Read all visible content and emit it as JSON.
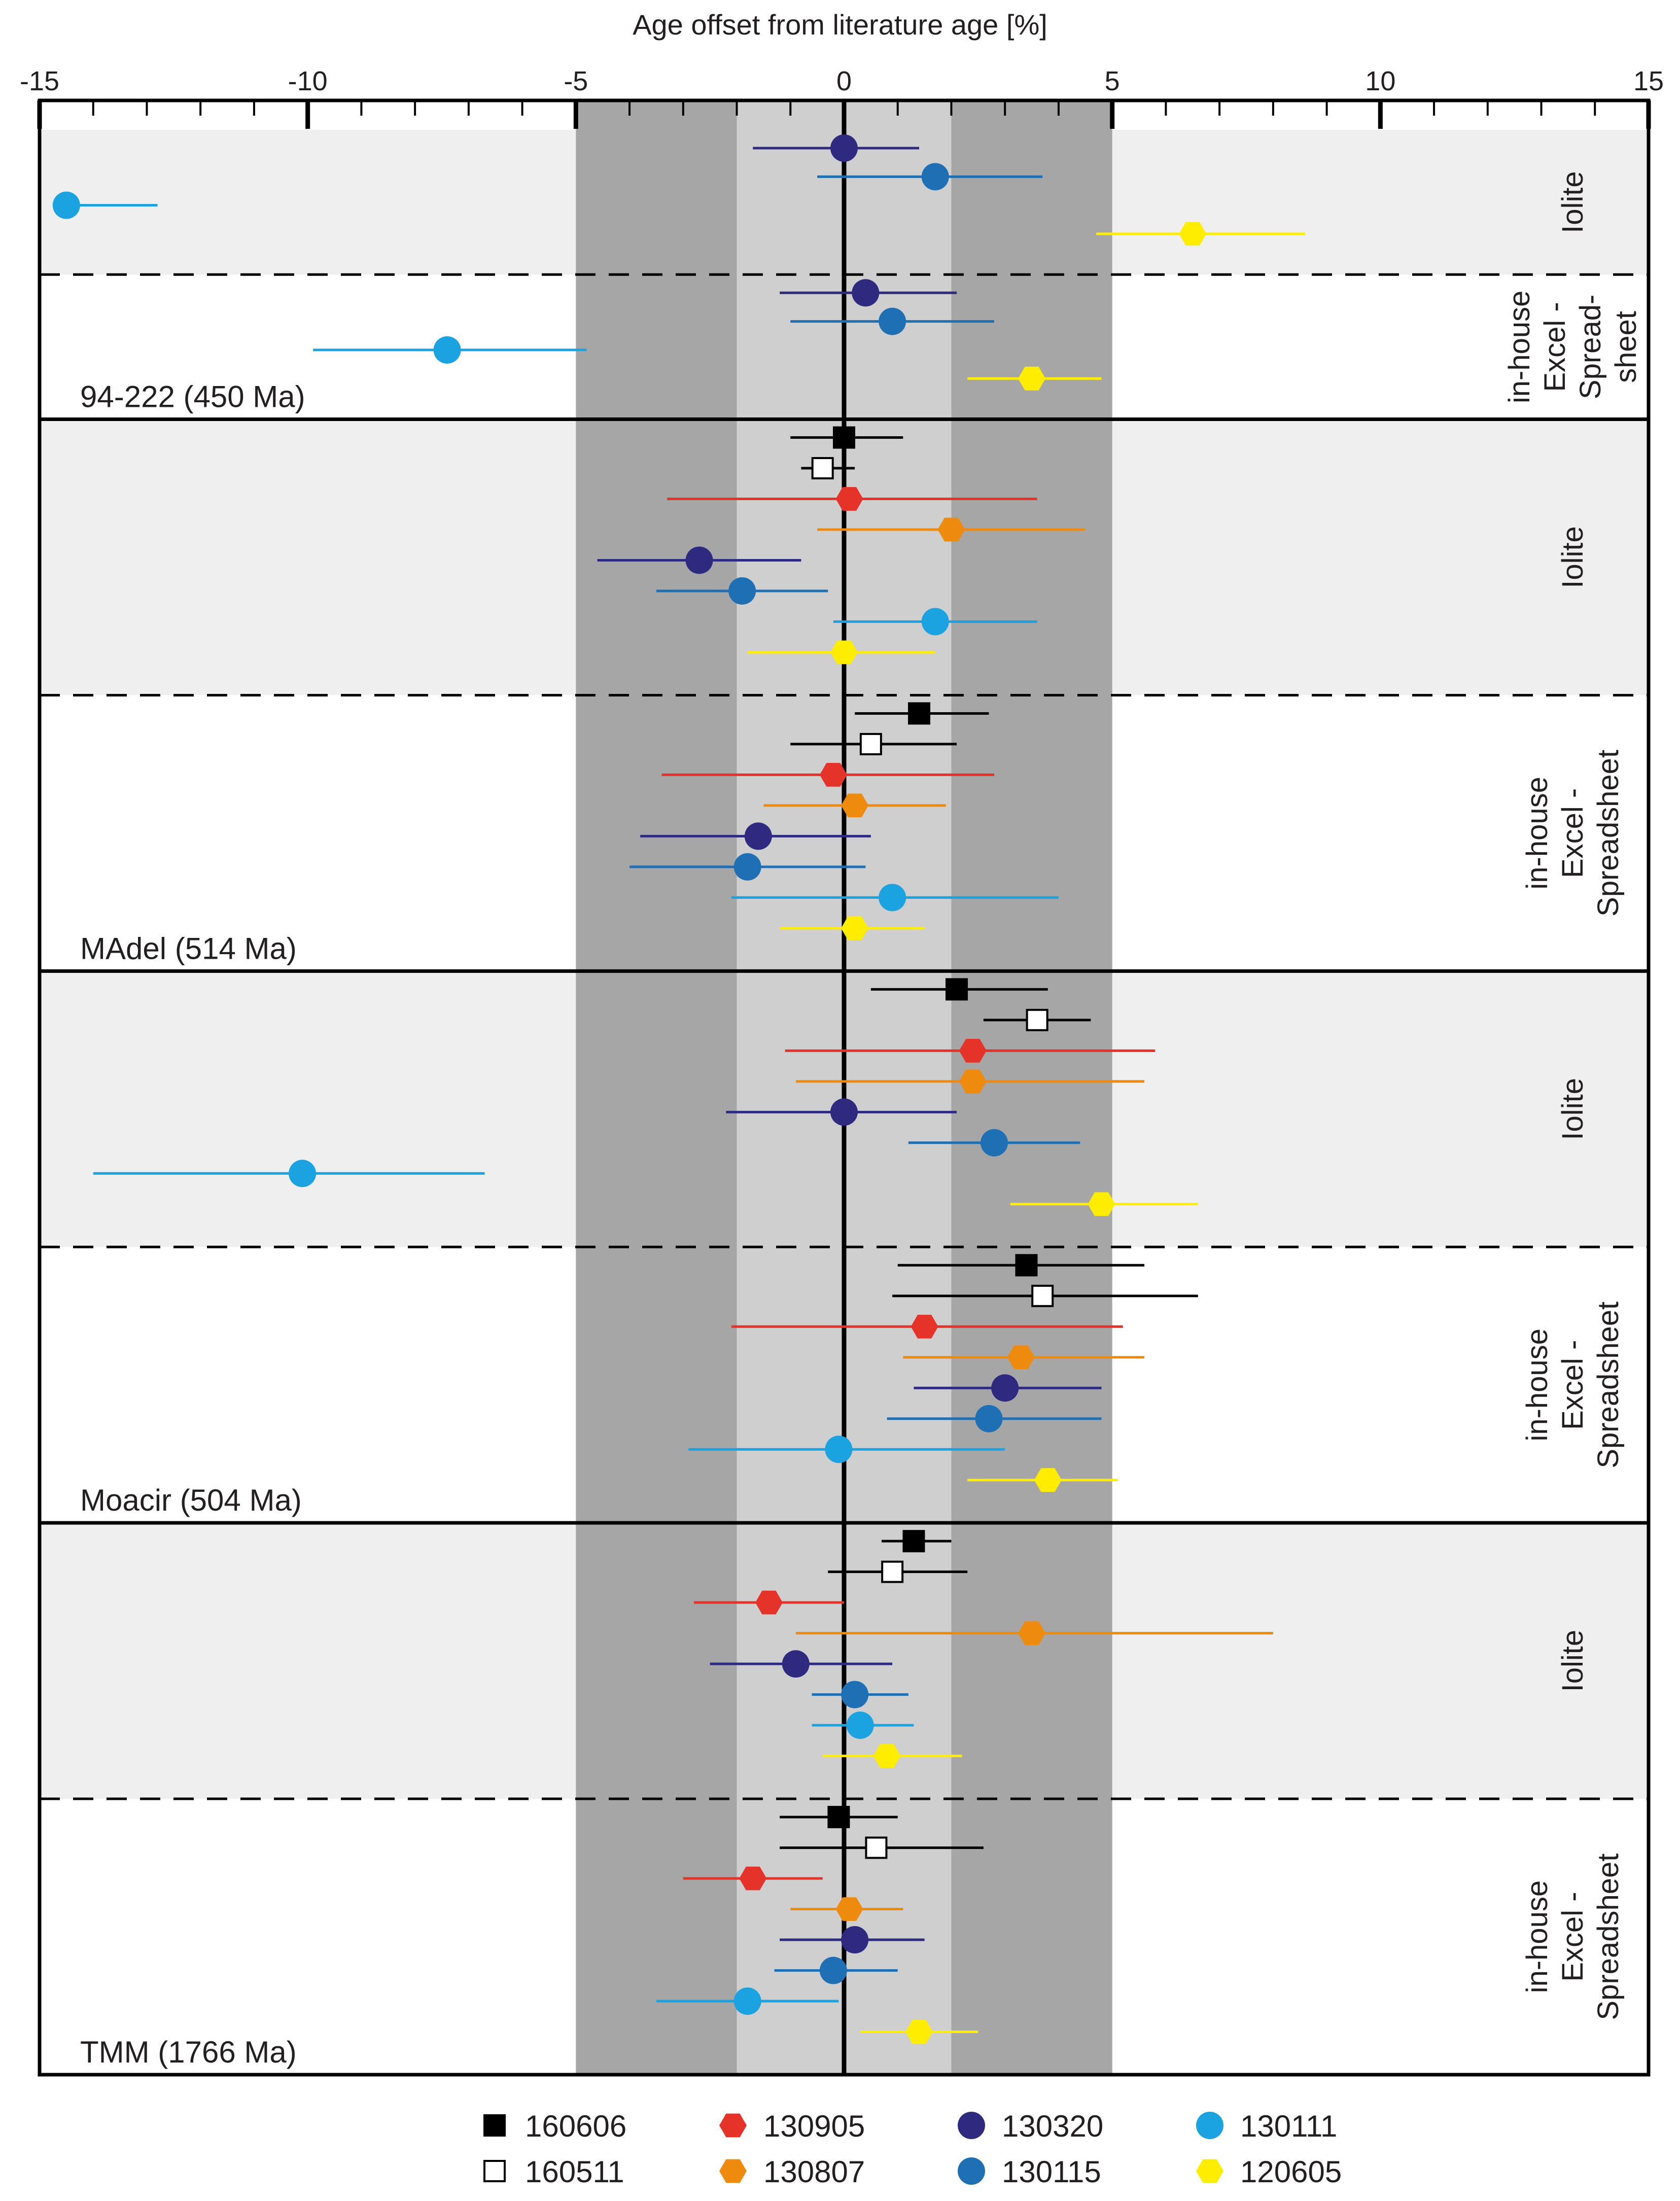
{
  "chart_data": {
    "type": "scatter",
    "subtype": "horizontal error-bar dot plot",
    "title": "Age offset from literature age [%]",
    "xlabel": "Age offset from literature age [%]",
    "xlim": [
      -15,
      15
    ],
    "xticks": [
      "-15",
      "-10",
      "-5",
      "0",
      "5",
      "10",
      "15"
    ],
    "xtick_values": [
      -15,
      -10,
      -5,
      0,
      5,
      10,
      15
    ],
    "bands": [
      {
        "name": "±5% band",
        "from": -5,
        "to": 5,
        "color": "#a6a6a6"
      },
      {
        "name": "±2% band",
        "from": -2,
        "to": 2,
        "color": "#cfcfcf"
      }
    ],
    "reference_line": {
      "x": 0
    },
    "series": [
      {
        "name": "160606",
        "color": "#000000",
        "marker": "square"
      },
      {
        "name": "160511",
        "color": "#000000",
        "marker": "open-square"
      },
      {
        "name": "130905",
        "color": "#e6332a",
        "marker": "hexagon"
      },
      {
        "name": "130807",
        "color": "#ee8a0e",
        "marker": "hexagon"
      },
      {
        "name": "130320",
        "color": "#2e2a80",
        "marker": "circle"
      },
      {
        "name": "130115",
        "color": "#1f6fb5",
        "marker": "circle"
      },
      {
        "name": "130111",
        "color": "#1aa3e0",
        "marker": "circle"
      },
      {
        "name": "120605",
        "color": "#ffed00",
        "marker": "hexagon"
      }
    ],
    "samples": [
      {
        "name": "94-222 (450 Ma)",
        "groups": [
          {
            "method": "Iolite",
            "label_lines": [
              "Iolite"
            ],
            "shaded": true,
            "points": [
              {
                "series": "130320",
                "value": 0.0,
                "low": -1.7,
                "high": 1.4
              },
              {
                "series": "130115",
                "value": 1.7,
                "low": -0.5,
                "high": 3.7
              },
              {
                "series": "130111",
                "value": -14.5,
                "low": -14.5,
                "high": -12.8
              },
              {
                "series": "120605",
                "value": 6.5,
                "low": 4.7,
                "high": 8.6
              }
            ]
          },
          {
            "method": "in-house Excel-Spreadsheet",
            "label_lines": [
              "in-house",
              "Excel -",
              "Spread-",
              "sheet"
            ],
            "shaded": false,
            "points": [
              {
                "series": "130320",
                "value": 0.4,
                "low": -1.2,
                "high": 2.1
              },
              {
                "series": "130115",
                "value": 0.9,
                "low": -1.0,
                "high": 2.8
              },
              {
                "series": "130111",
                "value": -7.4,
                "low": -9.9,
                "high": -4.8
              },
              {
                "series": "120605",
                "value": 3.5,
                "low": 2.3,
                "high": 4.8
              }
            ]
          }
        ]
      },
      {
        "name": "MAdel (514 Ma)",
        "groups": [
          {
            "method": "Iolite",
            "label_lines": [
              "Iolite"
            ],
            "shaded": true,
            "points": [
              {
                "series": "160606",
                "value": 0.0,
                "low": -1.0,
                "high": 1.1
              },
              {
                "series": "160511",
                "value": -0.4,
                "low": -0.8,
                "high": 0.2
              },
              {
                "series": "130905",
                "value": 0.1,
                "low": -3.3,
                "high": 3.6
              },
              {
                "series": "130807",
                "value": 2.0,
                "low": -0.5,
                "high": 4.5
              },
              {
                "series": "130320",
                "value": -2.7,
                "low": -4.6,
                "high": -0.8
              },
              {
                "series": "130115",
                "value": -1.9,
                "low": -3.5,
                "high": -0.3
              },
              {
                "series": "130111",
                "value": 1.7,
                "low": -0.2,
                "high": 3.6
              },
              {
                "series": "120605",
                "value": 0.0,
                "low": -1.8,
                "high": 1.7
              }
            ]
          },
          {
            "method": "in-house Excel-Spreadsheet",
            "label_lines": [
              "in-house",
              "Excel -",
              "Spreadsheet"
            ],
            "shaded": false,
            "points": [
              {
                "series": "160606",
                "value": 1.4,
                "low": 0.2,
                "high": 2.7
              },
              {
                "series": "160511",
                "value": 0.5,
                "low": -1.0,
                "high": 2.1
              },
              {
                "series": "130905",
                "value": -0.2,
                "low": -3.4,
                "high": 2.8
              },
              {
                "series": "130807",
                "value": 0.2,
                "low": -1.5,
                "high": 1.9
              },
              {
                "series": "130320",
                "value": -1.6,
                "low": -3.8,
                "high": 0.5
              },
              {
                "series": "130115",
                "value": -1.8,
                "low": -4.0,
                "high": 0.4
              },
              {
                "series": "130111",
                "value": 0.9,
                "low": -2.1,
                "high": 4.0
              },
              {
                "series": "120605",
                "value": 0.2,
                "low": -1.2,
                "high": 1.5
              }
            ]
          }
        ]
      },
      {
        "name": "Moacir (504 Ma)",
        "groups": [
          {
            "method": "Iolite",
            "label_lines": [
              "Iolite"
            ],
            "shaded": true,
            "points": [
              {
                "series": "160606",
                "value": 2.1,
                "low": 0.5,
                "high": 3.8
              },
              {
                "series": "160511",
                "value": 3.6,
                "low": 2.6,
                "high": 4.6
              },
              {
                "series": "130905",
                "value": 2.4,
                "low": -1.1,
                "high": 5.8
              },
              {
                "series": "130807",
                "value": 2.4,
                "low": -0.9,
                "high": 5.6
              },
              {
                "series": "130320",
                "value": 0.0,
                "low": -2.2,
                "high": 2.1
              },
              {
                "series": "130115",
                "value": 2.8,
                "low": 1.2,
                "high": 4.4
              },
              {
                "series": "130111",
                "value": -10.1,
                "low": -14.0,
                "high": -6.7
              },
              {
                "series": "120605",
                "value": 4.8,
                "low": 3.1,
                "high": 6.6
              }
            ]
          },
          {
            "method": "in-house Excel-Spreadsheet",
            "label_lines": [
              "in-house",
              "Excel -",
              "Spreadsheet"
            ],
            "shaded": false,
            "points": [
              {
                "series": "160606",
                "value": 3.4,
                "low": 1.0,
                "high": 5.6
              },
              {
                "series": "160511",
                "value": 3.7,
                "low": 0.9,
                "high": 6.6
              },
              {
                "series": "130905",
                "value": 1.5,
                "low": -2.1,
                "high": 5.2
              },
              {
                "series": "130807",
                "value": 3.3,
                "low": 1.1,
                "high": 5.6
              },
              {
                "series": "130320",
                "value": 3.0,
                "low": 1.3,
                "high": 4.8
              },
              {
                "series": "130115",
                "value": 2.7,
                "low": 0.8,
                "high": 4.8
              },
              {
                "series": "130111",
                "value": -0.1,
                "low": -2.9,
                "high": 3.0
              },
              {
                "series": "120605",
                "value": 3.8,
                "low": 2.3,
                "high": 5.1
              }
            ]
          }
        ]
      },
      {
        "name": "TMM (1766 Ma)",
        "groups": [
          {
            "method": "Iolite",
            "label_lines": [
              "Iolite"
            ],
            "shaded": true,
            "points": [
              {
                "series": "160606",
                "value": 1.3,
                "low": 0.7,
                "high": 2.0
              },
              {
                "series": "160511",
                "value": 0.9,
                "low": -0.3,
                "high": 2.3
              },
              {
                "series": "130905",
                "value": -1.4,
                "low": -2.8,
                "high": 0.0
              },
              {
                "series": "130807",
                "value": 3.5,
                "low": -0.9,
                "high": 8.0
              },
              {
                "series": "130320",
                "value": -0.9,
                "low": -2.5,
                "high": 0.9
              },
              {
                "series": "130115",
                "value": 0.2,
                "low": -0.6,
                "high": 1.2
              },
              {
                "series": "130111",
                "value": 0.3,
                "low": -0.6,
                "high": 1.3
              },
              {
                "series": "120605",
                "value": 0.8,
                "low": -0.4,
                "high": 2.2
              }
            ]
          },
          {
            "method": "in-house Excel-Spreadsheet",
            "label_lines": [
              "in-house",
              "Excel -",
              "Spreadsheet"
            ],
            "shaded": false,
            "points": [
              {
                "series": "160606",
                "value": -0.1,
                "low": -1.2,
                "high": 1.0
              },
              {
                "series": "160511",
                "value": 0.6,
                "low": -1.2,
                "high": 2.6
              },
              {
                "series": "130905",
                "value": -1.7,
                "low": -3.0,
                "high": -0.4
              },
              {
                "series": "130807",
                "value": 0.1,
                "low": -1.0,
                "high": 1.1
              },
              {
                "series": "130320",
                "value": 0.2,
                "low": -1.2,
                "high": 1.5
              },
              {
                "series": "130115",
                "value": -0.2,
                "low": -1.3,
                "high": 1.0
              },
              {
                "series": "130111",
                "value": -1.8,
                "low": -3.5,
                "high": -0.1
              },
              {
                "series": "120605",
                "value": 1.4,
                "low": 0.3,
                "high": 2.5
              }
            ]
          }
        ]
      }
    ],
    "legend": {
      "placement": "bottom",
      "rows": [
        [
          "160606",
          "130905",
          "130320",
          "130111"
        ],
        [
          "160511",
          "130807",
          "130115",
          "120605"
        ]
      ]
    }
  }
}
